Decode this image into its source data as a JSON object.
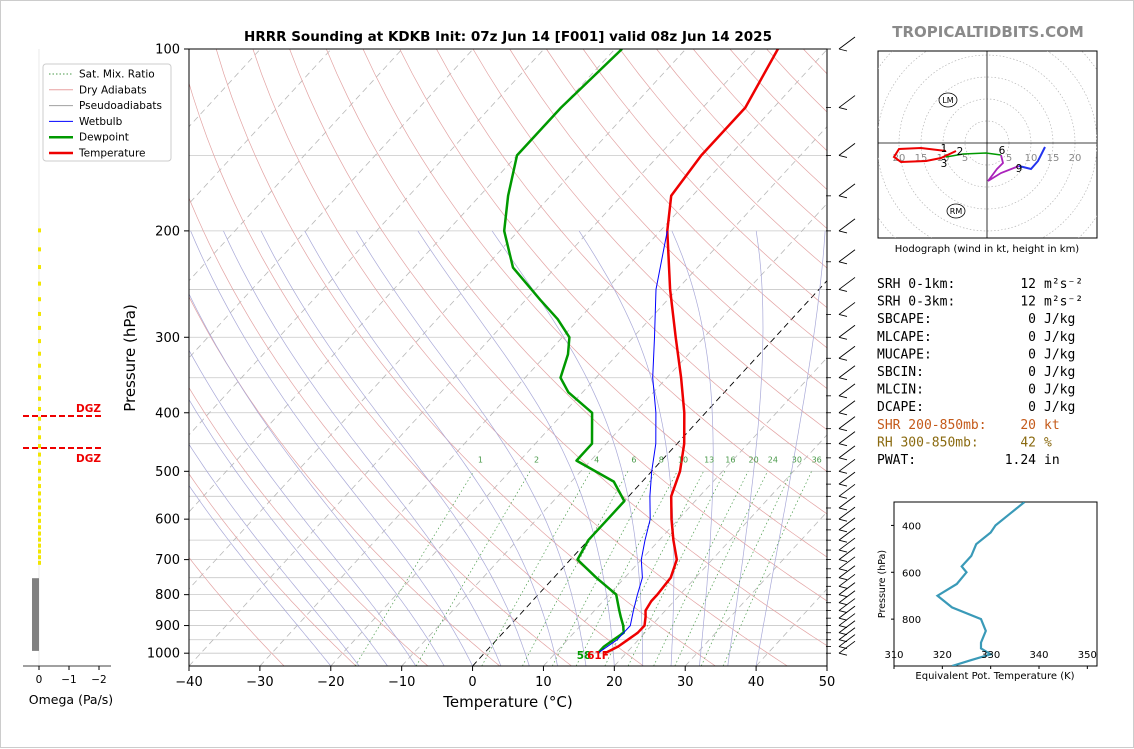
{
  "title": "HRRR Sounding at KDKB Init: 07z Jun 14 [F001] valid 08z Jun 14 2025",
  "brand": "TROPICALTIDBITS.COM",
  "chart_data": [
    {
      "type": "line",
      "name": "skew-t",
      "xlabel": "Temperature (°C)",
      "ylabel": "Pressure (hPa)",
      "xlim": [
        -40,
        50
      ],
      "ylim": [
        1050,
        100
      ],
      "y_scale": "log",
      "x_ticks": [
        "−40",
        "−30",
        "−20",
        "−10",
        "0",
        "10",
        "20",
        "30",
        "40",
        "50"
      ],
      "y_ticks": [
        "100",
        "200",
        "300",
        "400",
        "500",
        "600",
        "700",
        "800",
        "900",
        "1000"
      ],
      "legend": {
        "position": "top-left",
        "entries": [
          {
            "label": "Sat. Mix. Ratio",
            "color": "#4a9a4a",
            "style": "dotted"
          },
          {
            "label": "Dry Adiabats",
            "color": "#e8a0a0",
            "style": "solid"
          },
          {
            "label": "Pseudoadiabats",
            "color": "#a0a0a0",
            "style": "solid"
          },
          {
            "label": "Wetbulb",
            "color": "#0000ff",
            "style": "solid"
          },
          {
            "label": "Dewpoint",
            "color": "#009900",
            "style": "solid"
          },
          {
            "label": "Temperature",
            "color": "#ee0000",
            "style": "solid"
          }
        ]
      },
      "series": [
        {
          "name": "Temperature",
          "color": "#ee0000",
          "points": [
            [
              1000,
              17
            ],
            [
              975,
              18
            ],
            [
              950,
              18.5
            ],
            [
              925,
              19
            ],
            [
              900,
              19
            ],
            [
              870,
              18
            ],
            [
              850,
              17.2
            ],
            [
              820,
              16.8
            ],
            [
              800,
              16.8
            ],
            [
              750,
              16.5
            ],
            [
              700,
              15
            ],
            [
              650,
              12
            ],
            [
              600,
              9
            ],
            [
              550,
              6
            ],
            [
              500,
              4
            ],
            [
              450,
              1
            ],
            [
              400,
              -3
            ],
            [
              350,
              -8
            ],
            [
              300,
              -14
            ],
            [
              250,
              -21
            ],
            [
              200,
              -29
            ],
            [
              175,
              -33
            ],
            [
              150,
              -34
            ],
            [
              125,
              -34
            ],
            [
              100,
              -37
            ]
          ]
        },
        {
          "name": "Dewpoint",
          "color": "#009900",
          "points": [
            [
              1000,
              16
            ],
            [
              975,
              16
            ],
            [
              950,
              16.5
            ],
            [
              925,
              17
            ],
            [
              900,
              16
            ],
            [
              870,
              14.5
            ],
            [
              850,
              13.5
            ],
            [
              800,
              11
            ],
            [
              750,
              6
            ],
            [
              700,
              1
            ],
            [
              650,
              0
            ],
            [
              600,
              0
            ],
            [
              560,
              0
            ],
            [
              520,
              -4
            ],
            [
              480,
              -12
            ],
            [
              450,
              -12
            ],
            [
              400,
              -16
            ],
            [
              370,
              -22
            ],
            [
              350,
              -25
            ],
            [
              320,
              -27
            ],
            [
              300,
              -29
            ],
            [
              280,
              -33
            ],
            [
              260,
              -38
            ],
            [
              230,
              -46
            ],
            [
              200,
              -52
            ],
            [
              175,
              -56
            ],
            [
              150,
              -60
            ],
            [
              125,
              -60
            ],
            [
              100,
              -59
            ]
          ]
        },
        {
          "name": "Wetbulb",
          "color": "#0000ff",
          "points": [
            [
              1000,
              16
            ],
            [
              950,
              17
            ],
            [
              900,
              17
            ],
            [
              850,
              15.5
            ],
            [
              800,
              14
            ],
            [
              750,
              12.5
            ],
            [
              700,
              10
            ],
            [
              650,
              8
            ],
            [
              600,
              6
            ],
            [
              550,
              3
            ],
            [
              500,
              0
            ],
            [
              450,
              -3
            ],
            [
              400,
              -7
            ],
            [
              350,
              -12
            ],
            [
              300,
              -17
            ],
            [
              250,
              -23
            ],
            [
              200,
              -29
            ]
          ]
        }
      ],
      "annotations": {
        "surface_label": "58",
        "surface_label2": "61F",
        "dgz": "DGZ"
      }
    },
    {
      "type": "line",
      "name": "hodograph",
      "caption": "Hodograph (wind in kt, height in km)",
      "ring_labels": [
        "20",
        "15",
        "10",
        "5",
        "5",
        "10",
        "15",
        "20"
      ],
      "markers": [
        "LM",
        "RM"
      ],
      "height_labels": [
        "1",
        "2",
        "3",
        "6",
        "9"
      ]
    },
    {
      "type": "line",
      "name": "theta-e",
      "xlabel": "Equivalent Pot. Temperature (K)",
      "ylabel": "Pressure (hPa)",
      "x_ticks": [
        "310",
        "320",
        "330",
        "340",
        "350"
      ],
      "y_ticks": [
        "400",
        "600",
        "800"
      ],
      "xlim": [
        310,
        352
      ],
      "ylim": [
        1000,
        300
      ],
      "points": [
        [
          1000,
          322
        ],
        [
          975,
          326
        ],
        [
          950,
          330
        ],
        [
          925,
          328
        ],
        [
          900,
          328
        ],
        [
          850,
          329
        ],
        [
          800,
          328
        ],
        [
          750,
          322
        ],
        [
          700,
          319
        ],
        [
          650,
          323
        ],
        [
          600,
          325
        ],
        [
          575,
          324
        ],
        [
          530,
          326
        ],
        [
          480,
          327
        ],
        [
          430,
          330
        ],
        [
          400,
          331
        ],
        [
          350,
          334
        ],
        [
          300,
          337
        ]
      ]
    },
    {
      "type": "bar",
      "name": "omega",
      "xlabel": "Omega (Pa/s)",
      "x_ticks": [
        "0",
        "−1",
        "−2"
      ],
      "dgz_label": "DGZ"
    }
  ],
  "stats": [
    {
      "label": "SRH 0-1km:",
      "value": "12",
      "unit": "m²s⁻²",
      "color": "#000000"
    },
    {
      "label": "SRH 0-3km:",
      "value": "12",
      "unit": "m²s⁻²",
      "color": "#000000"
    },
    {
      "label": "SBCAPE:",
      "value": "0",
      "unit": "J/kg",
      "color": "#000000"
    },
    {
      "label": "MLCAPE:",
      "value": "0",
      "unit": "J/kg",
      "color": "#000000"
    },
    {
      "label": "MUCAPE:",
      "value": "0",
      "unit": "J/kg",
      "color": "#000000"
    },
    {
      "label": "SBCIN:",
      "value": "0",
      "unit": "J/kg",
      "color": "#000000"
    },
    {
      "label": "MLCIN:",
      "value": "0",
      "unit": "J/kg",
      "color": "#000000"
    },
    {
      "label": "DCAPE:",
      "value": "0",
      "unit": "J/kg",
      "color": "#000000"
    },
    {
      "label": "SHR 200-850mb:",
      "value": "20",
      "unit": "kt",
      "color": "#c45a1a"
    },
    {
      "label": "RH 300-850mb:",
      "value": "42",
      "unit": "%",
      "color": "#8a6a10"
    },
    {
      "label": "PWAT:",
      "value": "1.24",
      "unit": "in",
      "color": "#000000"
    }
  ],
  "mixing_ratio_labels": [
    "1",
    "2",
    "4",
    "6",
    "8",
    "10",
    "13",
    "16",
    "20",
    "24",
    "30",
    "36"
  ]
}
